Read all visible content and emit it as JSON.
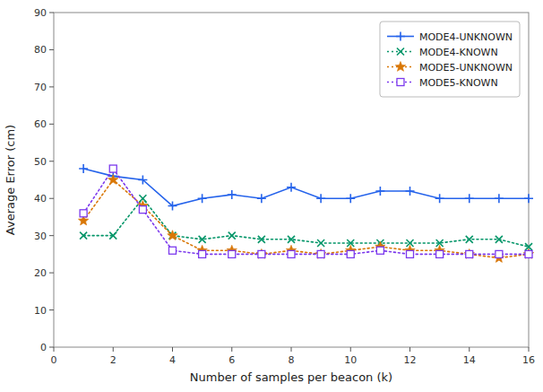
{
  "chart_data": {
    "type": "line",
    "xlabel": "Number of samples per beacon (k)",
    "ylabel": "Average Error (cm)",
    "x": [
      1,
      2,
      3,
      4,
      5,
      6,
      7,
      8,
      9,
      10,
      11,
      12,
      13,
      14,
      15,
      16
    ],
    "series": [
      {
        "name": "MODE4-UNKNOWN",
        "marker": "plus",
        "line_style": "solid",
        "values": [
          48,
          46,
          45,
          38,
          40,
          41,
          40,
          43,
          40,
          40,
          42,
          42,
          40,
          40,
          40,
          40
        ]
      },
      {
        "name": "MODE4-KNOWN",
        "marker": "x",
        "line_style": "dotted",
        "values": [
          30,
          30,
          40,
          30,
          29,
          30,
          29,
          29,
          28,
          28,
          28,
          28,
          28,
          29,
          29,
          27
        ]
      },
      {
        "name": "MODE5-UNKNOWN",
        "marker": "star",
        "line_style": "dotted",
        "values": [
          34,
          45,
          38,
          30,
          26,
          26,
          25,
          26,
          25,
          26,
          27,
          26,
          26,
          25,
          24,
          25
        ]
      },
      {
        "name": "MODE5-KNOWN",
        "marker": "square",
        "line_style": "dotted",
        "values": [
          36,
          48,
          37,
          26,
          25,
          25,
          25,
          25,
          25,
          25,
          26,
          25,
          25,
          25,
          25,
          25
        ]
      }
    ],
    "xlim": [
      0,
      16
    ],
    "ylim": [
      0,
      90
    ],
    "xticks": [
      0,
      2,
      4,
      6,
      8,
      10,
      12,
      14,
      16
    ],
    "yticks": [
      0,
      10,
      20,
      30,
      40,
      50,
      60,
      70,
      80,
      90
    ],
    "grid": false,
    "legend": "top-right"
  }
}
